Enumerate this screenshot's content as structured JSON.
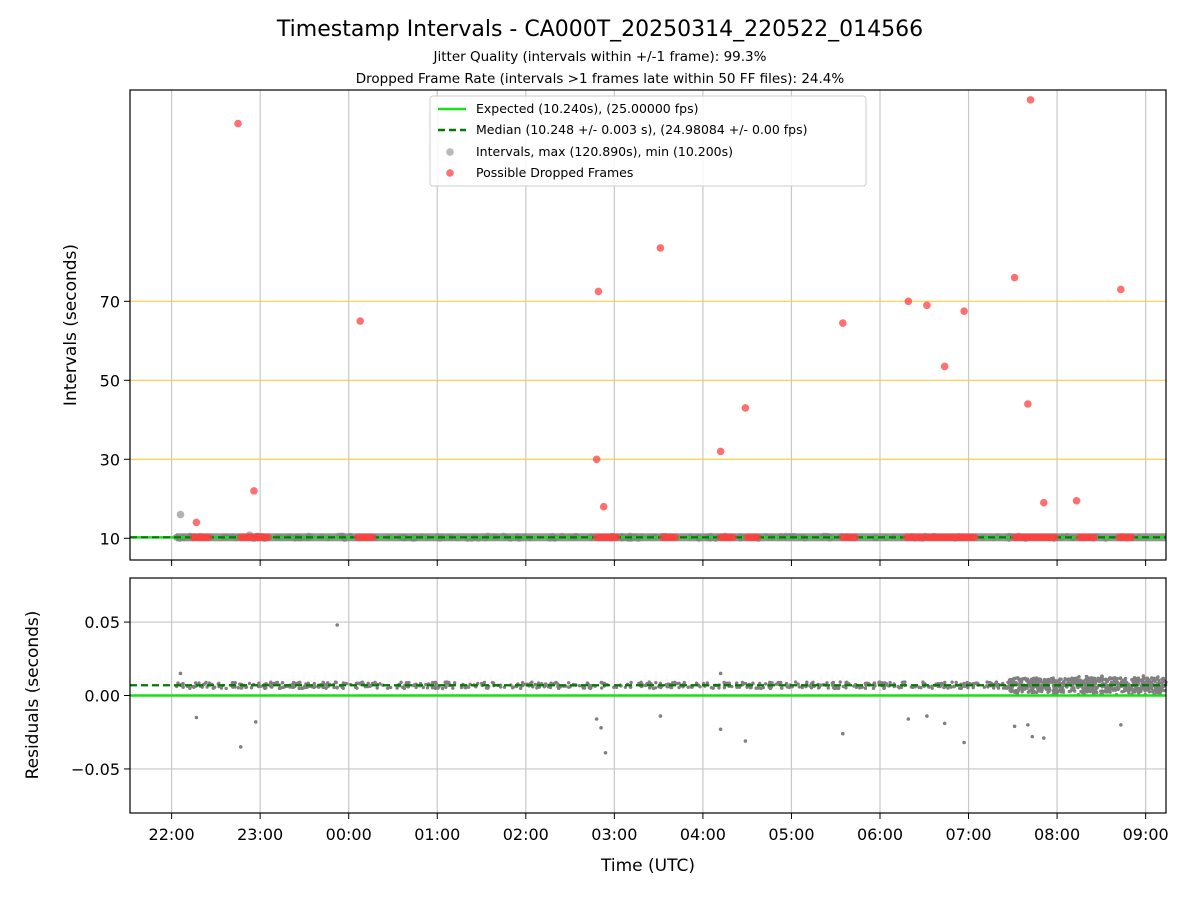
{
  "chart_data": {
    "type": "scatter",
    "title": "Timestamp Intervals - CA000T_20250314_220522_014566",
    "subtitles": [
      "Jitter Quality (intervals within +/-1 frame): 99.3%",
      "Dropped Frame Rate (intervals >1 frames late within 50 FF files): 24.4%"
    ],
    "xlabel": "Time (UTC)",
    "x_ticks": [
      "22:00",
      "23:00",
      "00:00",
      "01:00",
      "02:00",
      "03:00",
      "04:00",
      "05:00",
      "06:00",
      "07:00",
      "08:00",
      "09:00"
    ],
    "x_range_hours": [
      -0.47,
      11.23
    ],
    "grid": "vertical gridlines at each hour; horizontal orange reference lines on top panel; horizontal grey gridlines on bottom panel",
    "legend_position": "top-center",
    "legend": [
      "Expected (10.240s), (25.00000 fps)",
      "Median (10.248 +/- 0.003 s), (24.98084 +/- 0.00 fps)",
      "Intervals, max (120.890s), min (10.200s)",
      "Possible Dropped Frames"
    ],
    "colors": {
      "expected": "#18e018",
      "median": "#007a00",
      "intervals": "#808080",
      "dropped": "#ff4040",
      "reference_lines": "#ffc832"
    },
    "top_panel": {
      "ylabel": "Intervals (seconds)",
      "y_ticks": [
        "10",
        "30",
        "50",
        "70"
      ],
      "ylim": [
        4.5,
        123.5
      ],
      "reference_lines": [
        30,
        50,
        70
      ],
      "expected": 10.24,
      "median": 10.248,
      "dropped_frames": [
        {
          "t": 0.28,
          "y": 14
        },
        {
          "t": 0.75,
          "y": 115
        },
        {
          "t": 0.93,
          "y": 22
        },
        {
          "t": 2.13,
          "y": 65
        },
        {
          "t": 4.8,
          "y": 30
        },
        {
          "t": 4.82,
          "y": 72.5
        },
        {
          "t": 4.88,
          "y": 18
        },
        {
          "t": 5.52,
          "y": 83.5
        },
        {
          "t": 6.2,
          "y": 32
        },
        {
          "t": 6.48,
          "y": 43
        },
        {
          "t": 7.58,
          "y": 64.5
        },
        {
          "t": 8.32,
          "y": 70
        },
        {
          "t": 8.53,
          "y": 69
        },
        {
          "t": 8.73,
          "y": 53.5
        },
        {
          "t": 8.95,
          "y": 67.5
        },
        {
          "t": 9.52,
          "y": 76
        },
        {
          "t": 9.67,
          "y": 44
        },
        {
          "t": 9.7,
          "y": 121
        },
        {
          "t": 9.85,
          "y": 19
        },
        {
          "t": 10.22,
          "y": 19.5
        },
        {
          "t": 10.72,
          "y": 73
        }
      ],
      "dropped_clusters_at_10s": [
        [
          0.25,
          0.42
        ],
        [
          0.78,
          1.1
        ],
        [
          2.1,
          2.27
        ],
        [
          4.8,
          5.05
        ],
        [
          5.55,
          5.7
        ],
        [
          6.2,
          6.35
        ],
        [
          6.5,
          6.62
        ],
        [
          7.58,
          7.72
        ],
        [
          8.3,
          8.5
        ],
        [
          8.55,
          8.72
        ],
        [
          8.75,
          8.92
        ],
        [
          8.93,
          9.08
        ],
        [
          9.52,
          9.72
        ],
        [
          9.75,
          10.0
        ],
        [
          10.25,
          10.42
        ],
        [
          10.7,
          10.85
        ]
      ],
      "other_intervals": [
        {
          "t": 0.1,
          "y": 16
        },
        {
          "t": 0.88,
          "y": 10.8
        }
      ]
    },
    "bottom_panel": {
      "ylabel": "Residuals (seconds)",
      "y_ticks": [
        "0.05",
        "0.00",
        "−0.05"
      ],
      "ylim": [
        -0.08,
        0.08
      ],
      "expected": 0.0,
      "median": 0.007,
      "outliers": [
        {
          "t": 1.87,
          "y": 0.048
        },
        {
          "t": 0.1,
          "y": 0.015
        },
        {
          "t": 0.28,
          "y": -0.015
        },
        {
          "t": 0.78,
          "y": -0.035
        },
        {
          "t": 0.95,
          "y": -0.018
        },
        {
          "t": 4.8,
          "y": -0.016
        },
        {
          "t": 4.85,
          "y": -0.022
        },
        {
          "t": 4.9,
          "y": -0.039
        },
        {
          "t": 5.52,
          "y": -0.014
        },
        {
          "t": 6.2,
          "y": -0.023
        },
        {
          "t": 6.2,
          "y": 0.015
        },
        {
          "t": 6.48,
          "y": -0.031
        },
        {
          "t": 7.58,
          "y": -0.026
        },
        {
          "t": 8.32,
          "y": -0.016
        },
        {
          "t": 8.53,
          "y": -0.014
        },
        {
          "t": 8.73,
          "y": -0.019
        },
        {
          "t": 8.95,
          "y": -0.032
        },
        {
          "t": 9.52,
          "y": -0.021
        },
        {
          "t": 9.67,
          "y": -0.02
        },
        {
          "t": 9.72,
          "y": -0.028
        },
        {
          "t": 9.85,
          "y": -0.029
        },
        {
          "t": 10.72,
          "y": -0.02
        }
      ]
    }
  }
}
